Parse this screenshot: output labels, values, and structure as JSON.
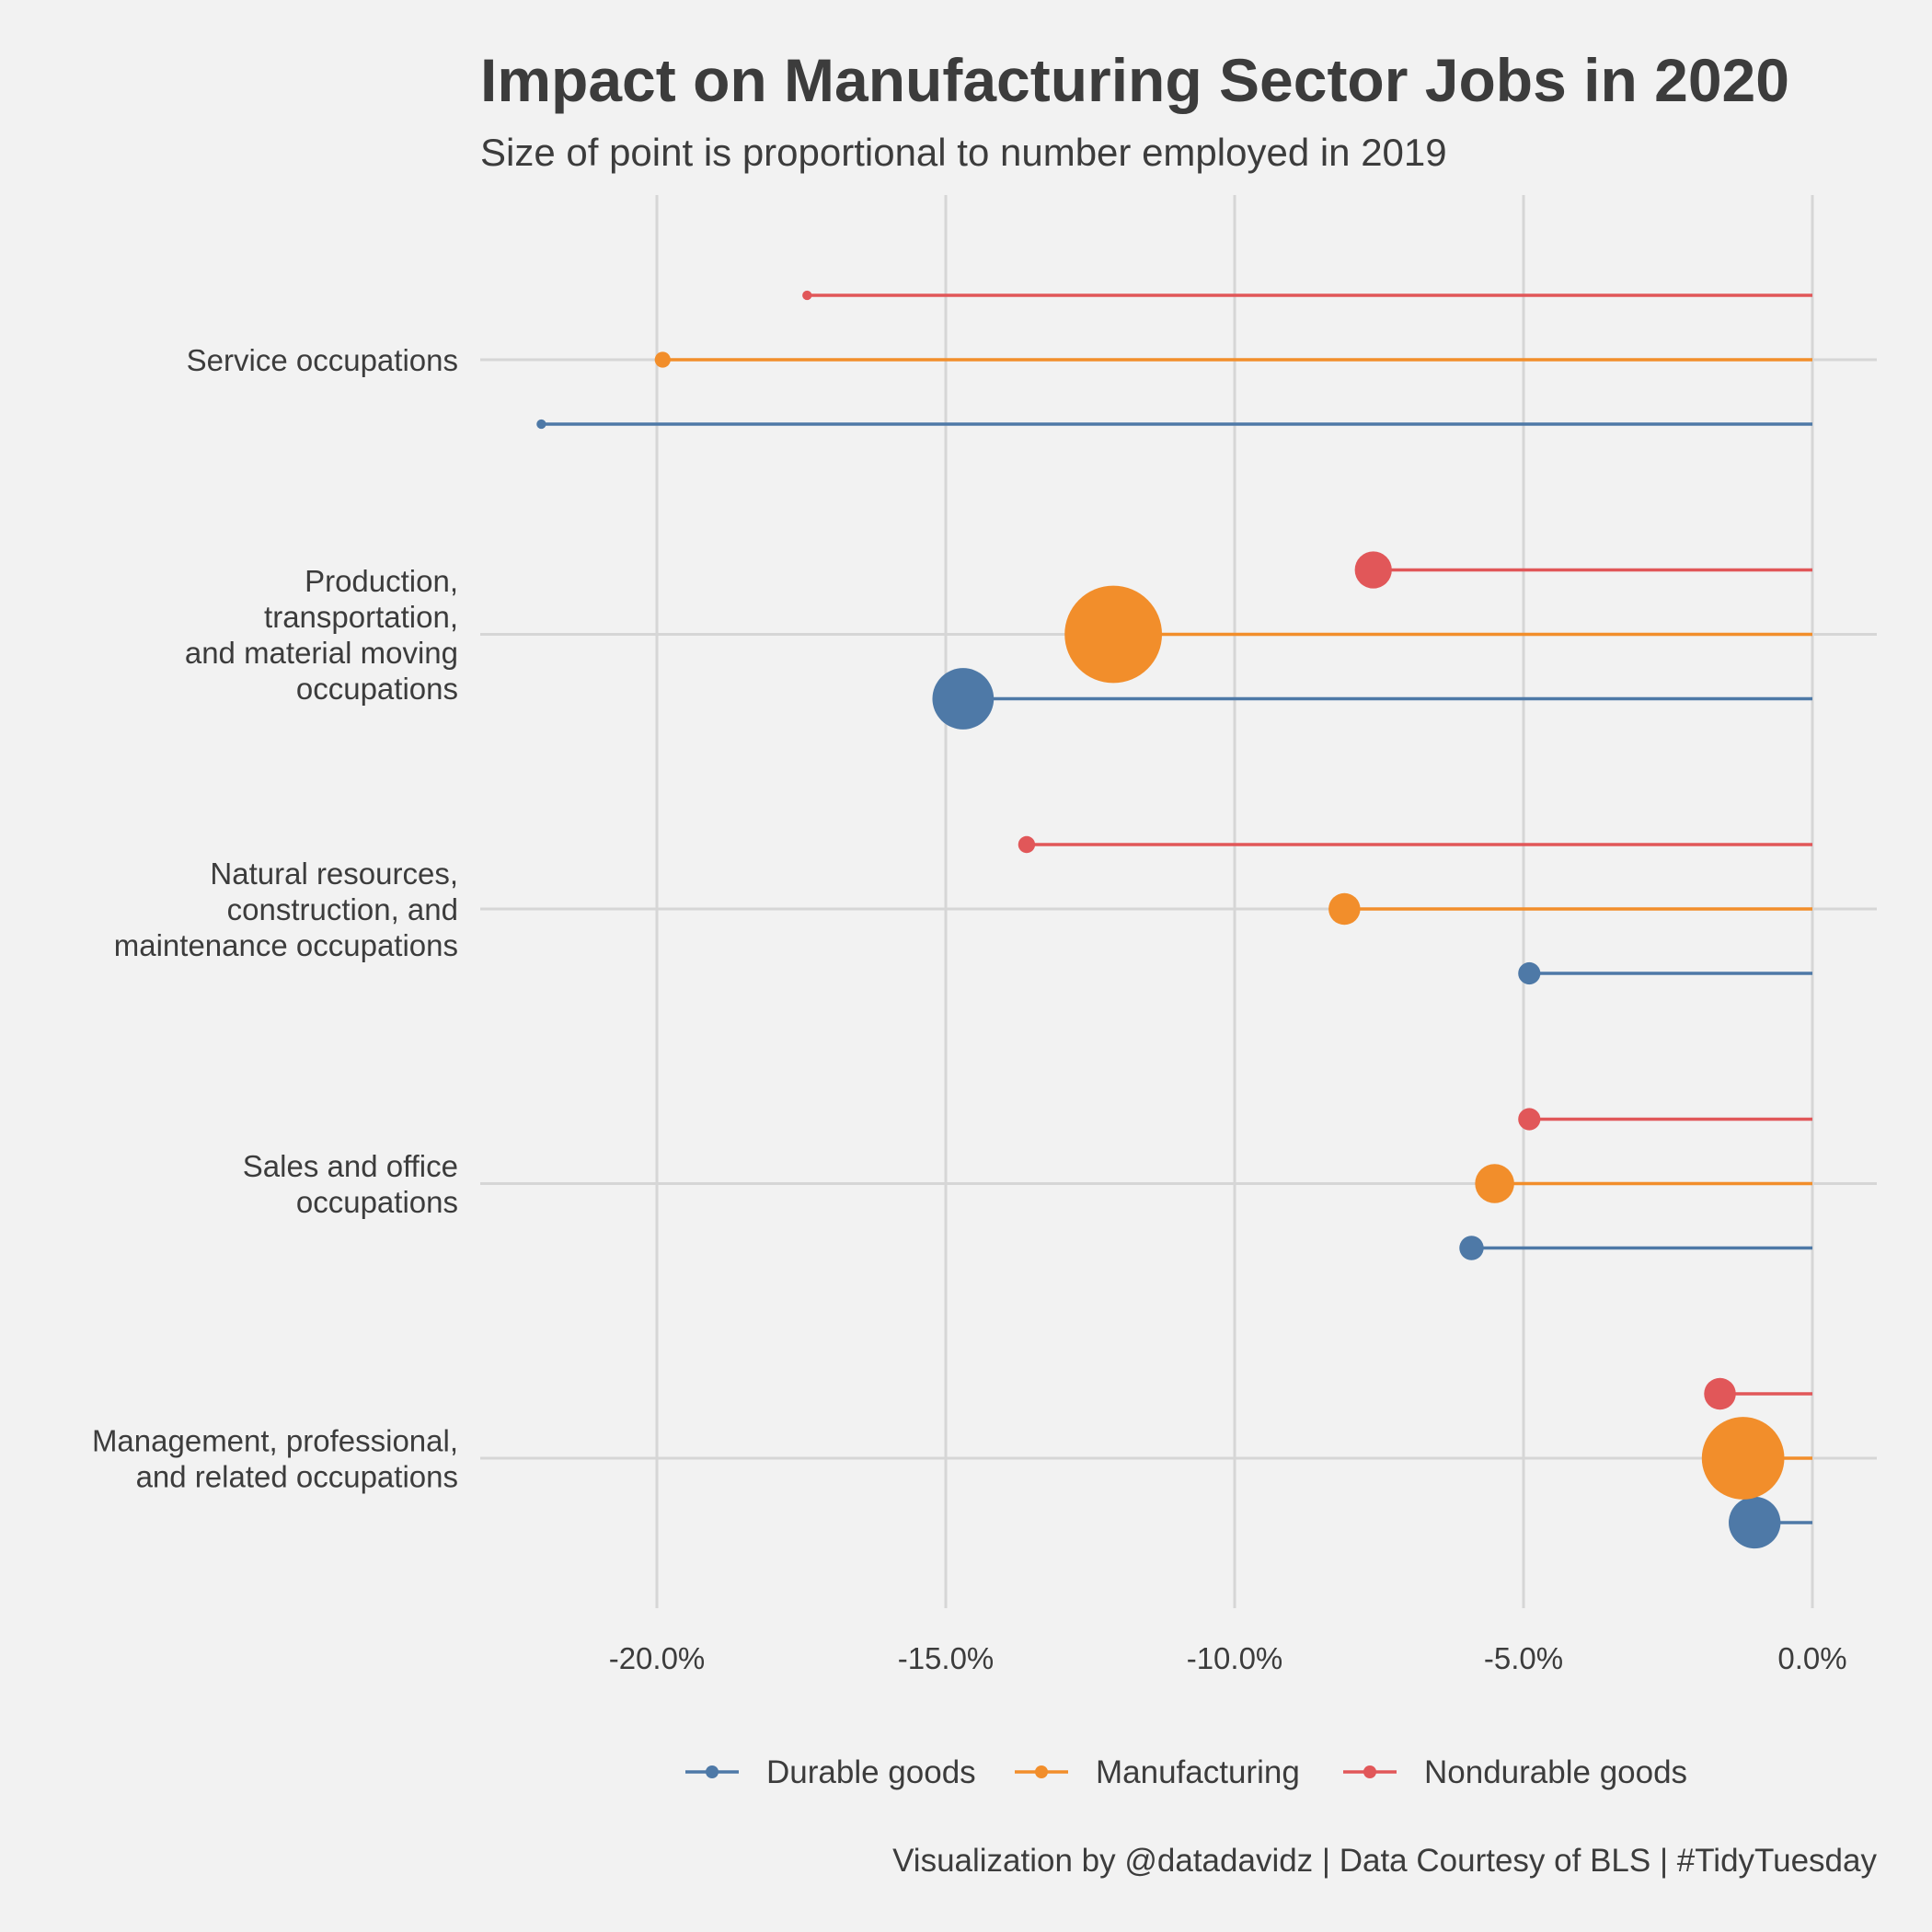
{
  "chart_data": {
    "type": "lollipop",
    "title": "Impact on Manufacturing Sector Jobs in 2020",
    "subtitle": "Size of point is proportional to number employed in 2019",
    "caption": "Visualization by @datadavidz | Data Courtesy of BLS | #TidyTuesday",
    "xlim": [
      -23,
      1
    ],
    "x_ticks": [
      -20,
      -15,
      -10,
      -5,
      0
    ],
    "x_tick_labels": [
      "-20.0%",
      "-15.0%",
      "-10.0%",
      "-5.0%",
      "0.0%"
    ],
    "grid": true,
    "legend_position": "bottom",
    "categories": [
      {
        "label": [
          "Service occupations"
        ]
      },
      {
        "label": [
          "Production,",
          "transportation,",
          "and material moving",
          "occupations"
        ]
      },
      {
        "label": [
          "Natural resources,",
          "construction, and",
          "maintenance occupations"
        ]
      },
      {
        "label": [
          "Sales and office",
          "occupations"
        ]
      },
      {
        "label": [
          "Management, professional,",
          "and related occupations"
        ]
      }
    ],
    "series": [
      {
        "name": "Durable goods",
        "color": "#4e79a7",
        "values": [
          -22.0,
          -14.7,
          -4.9,
          -5.9,
          -1.0
        ],
        "sizes": [
          0.45,
          2.9,
          1.05,
          1.15,
          2.45
        ]
      },
      {
        "name": "Manufacturing",
        "color": "#f28e2b",
        "values": [
          -19.9,
          -12.1,
          -8.1,
          -5.5,
          -1.2
        ],
        "sizes": [
          0.75,
          4.6,
          1.5,
          1.85,
          3.9
        ]
      },
      {
        "name": "Nondurable goods",
        "color": "#e15759",
        "values": [
          -17.4,
          -7.6,
          -13.6,
          -4.9,
          -1.6
        ],
        "sizes": [
          0.45,
          1.75,
          0.8,
          1.05,
          1.5
        ]
      }
    ]
  }
}
